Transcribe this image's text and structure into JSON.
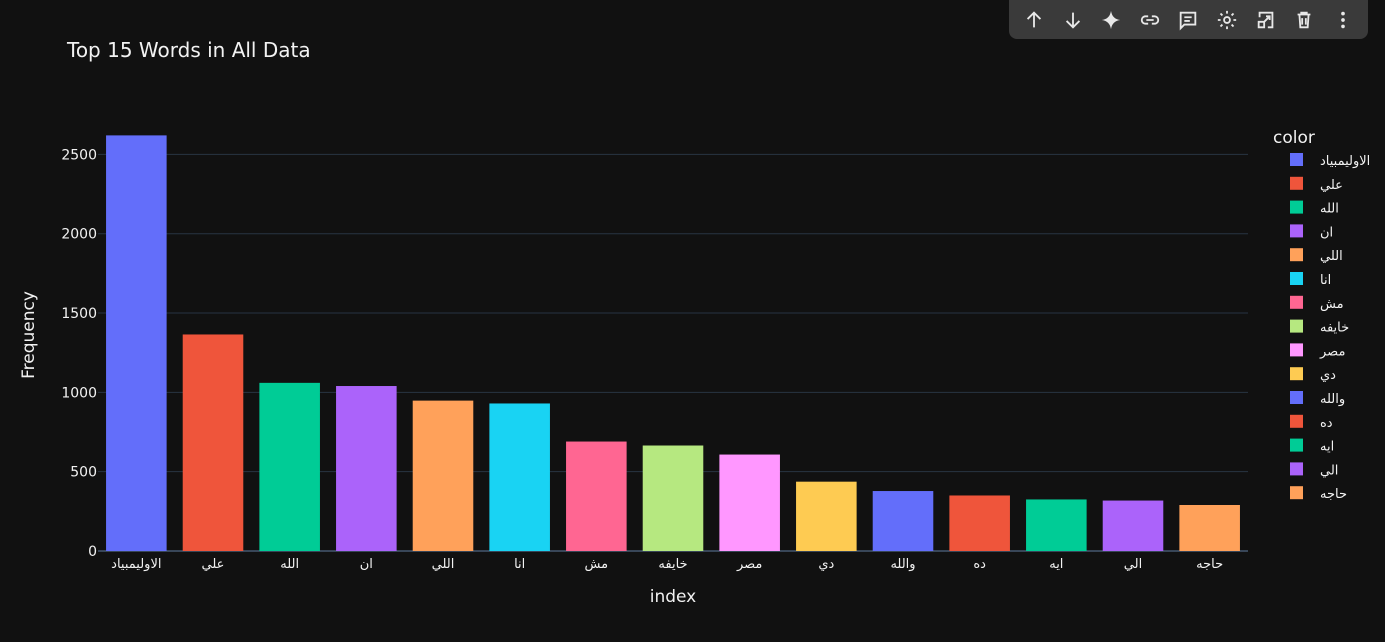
{
  "toolbar": {
    "icons": [
      "arrow-up-icon",
      "arrow-down-icon",
      "sparkle-icon",
      "link-icon",
      "comment-icon",
      "settings-icon",
      "open-external-icon",
      "trash-icon",
      "more-vert-icon"
    ]
  },
  "chart_data": {
    "type": "bar",
    "title": "Top 15 Words in All Data",
    "xlabel": "index",
    "ylabel": "Frequency",
    "legend_title": "color",
    "legend_position": "right",
    "grid": true,
    "ylim": [
      0,
      2780
    ],
    "yticks": [
      0,
      500,
      1000,
      1500,
      2000,
      2500
    ],
    "categories": [
      "الاوليمبياد",
      "علي",
      "الله",
      "ان",
      "اللي",
      "انا",
      "مش",
      "خايفه",
      "مصر",
      "دي",
      "والله",
      "ده",
      "ايه",
      "الي",
      "حاجه"
    ],
    "values": [
      2620,
      1365,
      1060,
      1040,
      948,
      930,
      690,
      665,
      608,
      437,
      378,
      350,
      325,
      318,
      290
    ],
    "colors": [
      "#636efa",
      "#ef553b",
      "#00cc96",
      "#ab63fa",
      "#ffa15a",
      "#19d3f3",
      "#ff6692",
      "#b6e880",
      "#ff97ff",
      "#fecb52",
      "#636efa",
      "#ef553b",
      "#00cc96",
      "#ab63fa",
      "#ffa15a"
    ]
  }
}
